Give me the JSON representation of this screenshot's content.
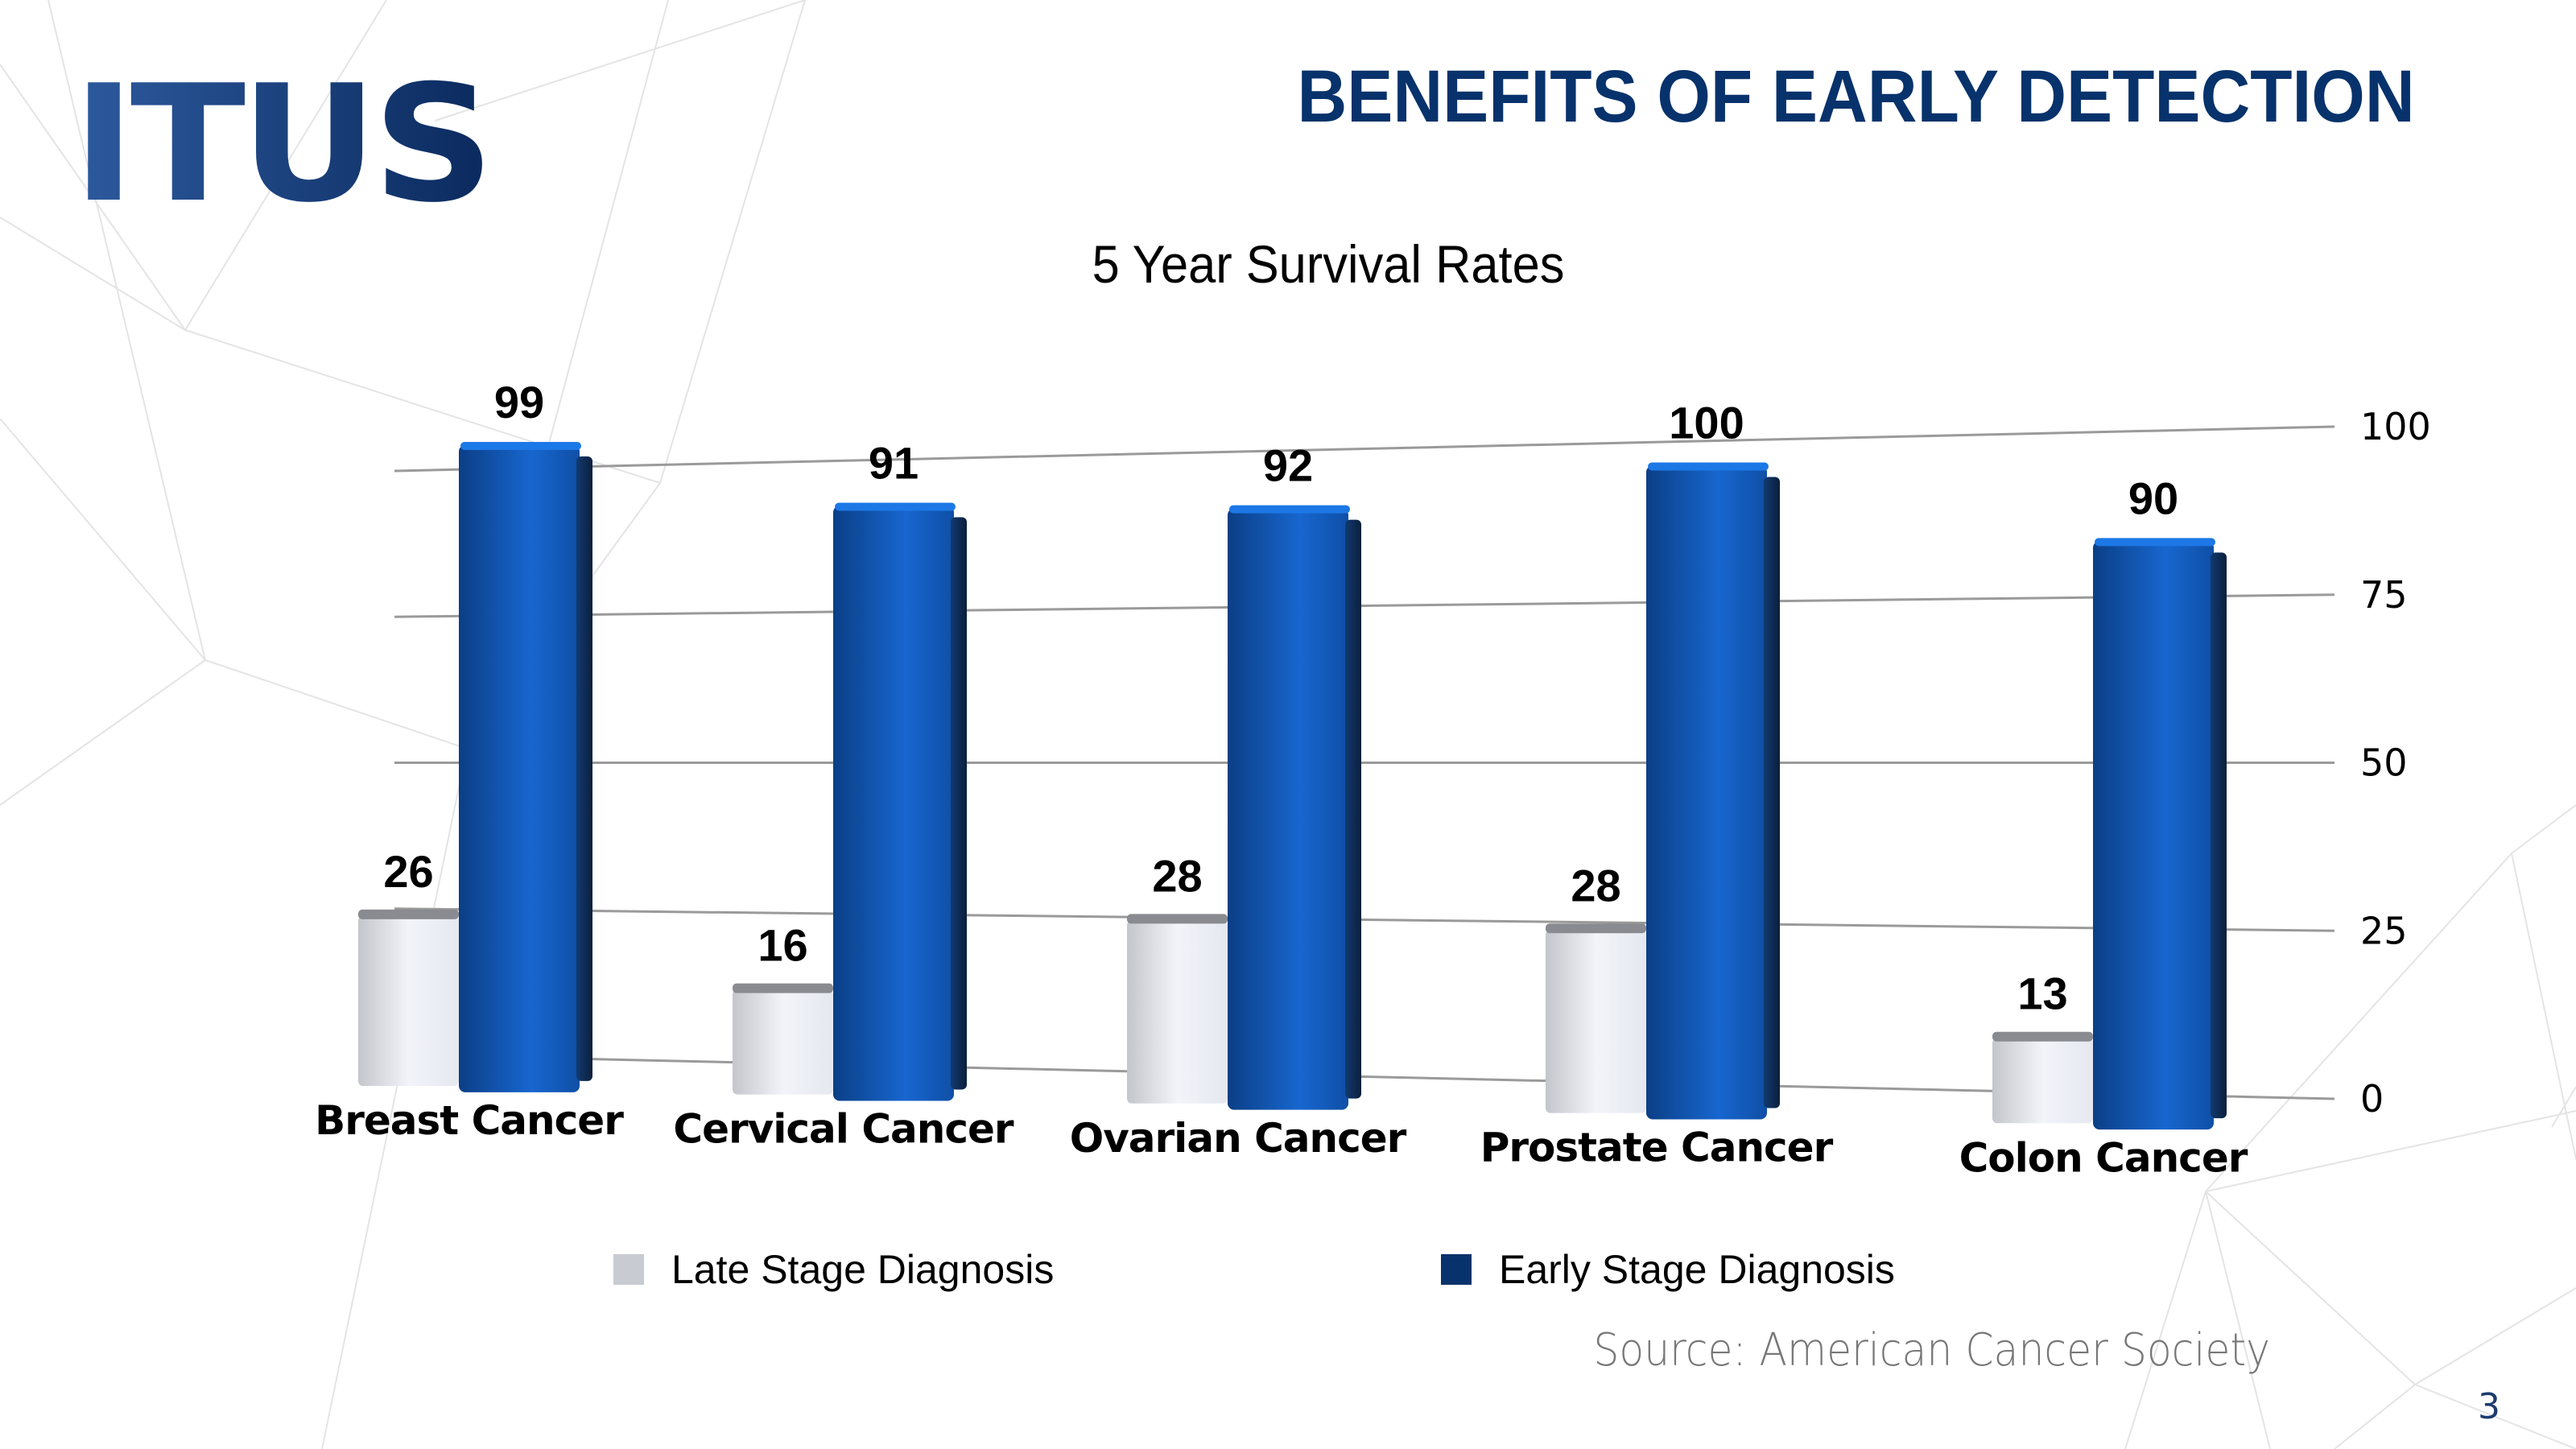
{
  "header": {
    "logo_text": "ITUS",
    "slide_title": "BENEFITS OF EARLY DETECTION"
  },
  "footer": {
    "source": "Source: American Cancer Society",
    "page_number": "3"
  },
  "colors": {
    "brand": "#07326b",
    "late_stage": "#d0d3db",
    "early_stage": "#0f56b3",
    "gridline": "#9a9a9a"
  },
  "chart_data": {
    "type": "bar",
    "title": "5 Year Survival Rates",
    "xlabel": "",
    "ylabel": "",
    "ylim": [
      0,
      100
    ],
    "yticks": [
      0,
      25,
      50,
      75,
      100
    ],
    "y_axis_position": "right",
    "grid": true,
    "legend_position": "bottom",
    "categories": [
      "Breast Cancer",
      "Cervical Cancer",
      "Ovarian Cancer",
      "Prostate Cancer",
      "Colon Cancer"
    ],
    "series": [
      {
        "name": "Late Stage Diagnosis",
        "color": "#d0d3db",
        "values": [
          26,
          16,
          28,
          28,
          13
        ]
      },
      {
        "name": "Early Stage Diagnosis",
        "color": "#0f56b3",
        "legend_color": "#07326b",
        "values": [
          99,
          91,
          92,
          100,
          90
        ]
      }
    ]
  }
}
